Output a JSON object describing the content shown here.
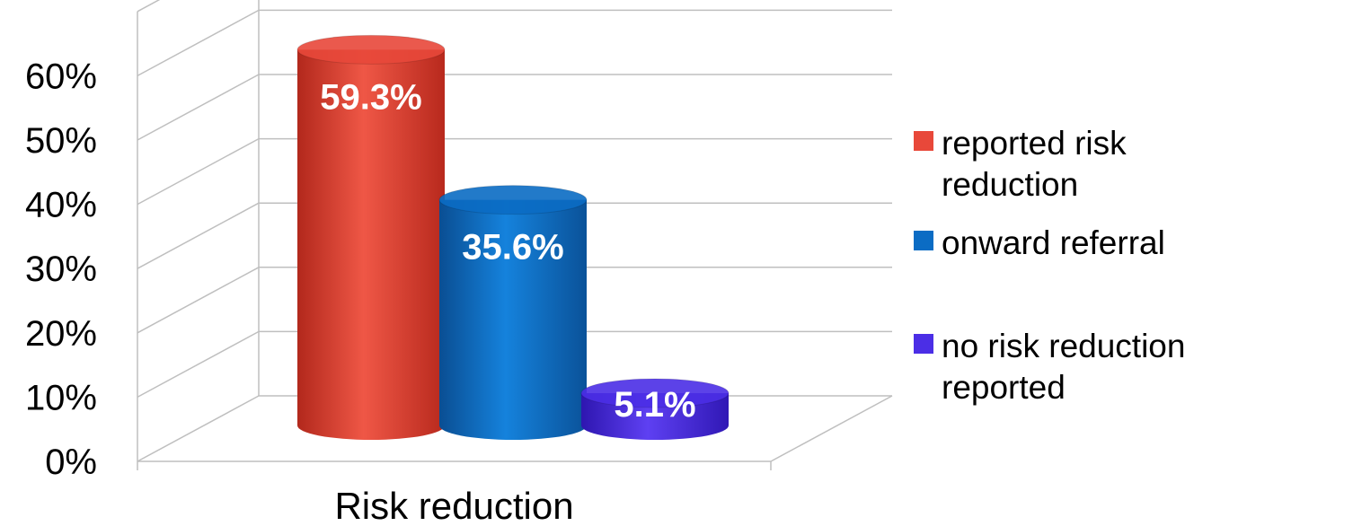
{
  "chart_data": {
    "type": "bar",
    "style": "3d-cylinder",
    "categories": [
      "Risk reduction"
    ],
    "series": [
      {
        "name": "reported risk reduction",
        "values": [
          59.3
        ],
        "label": "59.3%",
        "color": "#E8483A"
      },
      {
        "name": "onward referral",
        "values": [
          35.6
        ],
        "label": "35.6%",
        "color": "#0B6CC4"
      },
      {
        "name": "no risk reduction reported",
        "values": [
          5.1
        ],
        "label": "5.1%",
        "color": "#4B2EE6"
      }
    ],
    "y_ticks": [
      "0%",
      "10%",
      "20%",
      "30%",
      "40%",
      "50%",
      "60%"
    ],
    "ylim": [
      0,
      70
    ],
    "grid": true,
    "legend_position": "right"
  }
}
